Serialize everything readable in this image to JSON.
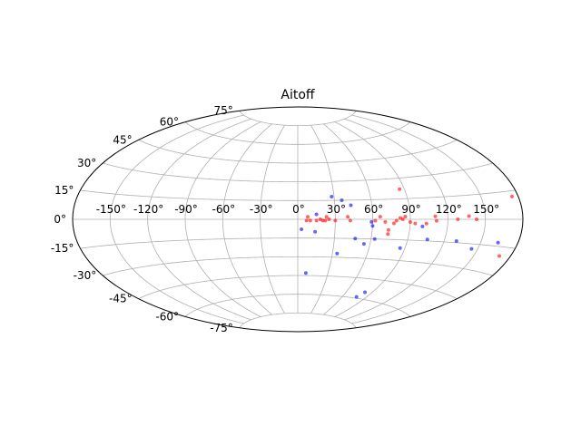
{
  "chart_data": {
    "type": "scatter",
    "projection": "aitoff",
    "title": "Aitoff",
    "grid": true,
    "xlim": [
      -180,
      180
    ],
    "ylim": [
      -90,
      90
    ],
    "lon_tick_labels": [
      {
        "value": -150,
        "label": "-150°"
      },
      {
        "value": -120,
        "label": "-120°"
      },
      {
        "value": -90,
        "label": "-90°"
      },
      {
        "value": -60,
        "label": "-60°"
      },
      {
        "value": -30,
        "label": "-30°"
      },
      {
        "value": 0,
        "label": "0°"
      },
      {
        "value": 30,
        "label": "30°"
      },
      {
        "value": 60,
        "label": "60°"
      },
      {
        "value": 90,
        "label": "90°"
      },
      {
        "value": 120,
        "label": "120°"
      },
      {
        "value": 150,
        "label": "150°"
      }
    ],
    "lat_tick_labels": [
      {
        "value": 75,
        "label": "75°"
      },
      {
        "value": 60,
        "label": "60°"
      },
      {
        "value": 45,
        "label": "45°"
      },
      {
        "value": 30,
        "label": "30°"
      },
      {
        "value": 15,
        "label": "15°"
      },
      {
        "value": 0,
        "label": "0°"
      },
      {
        "value": -15,
        "label": "-15°"
      },
      {
        "value": -30,
        "label": "-30°"
      },
      {
        "value": -45,
        "label": "-45°"
      },
      {
        "value": -60,
        "label": "-60°"
      },
      {
        "value": -75,
        "label": "-75°"
      }
    ],
    "series": [
      {
        "color": "#ff0000",
        "points": [
          [
            7,
            -1
          ],
          [
            8,
            2
          ],
          [
            10,
            -1
          ],
          [
            15,
            -1
          ],
          [
            18,
            0
          ],
          [
            20,
            -1
          ],
          [
            22,
            -1
          ],
          [
            23,
            2
          ],
          [
            25,
            0
          ],
          [
            30,
            -1
          ],
          [
            40,
            2
          ],
          [
            42,
            -1
          ],
          [
            62,
            -1
          ],
          [
            66,
            2
          ],
          [
            70,
            -2
          ],
          [
            73,
            -8
          ],
          [
            73,
            -11
          ],
          [
            77,
            -3
          ],
          [
            79,
            -1
          ],
          [
            82,
            1
          ],
          [
            84,
            0
          ],
          [
            86,
            2
          ],
          [
            86,
            22
          ],
          [
            90,
            -2
          ],
          [
            94,
            -3
          ],
          [
            103,
            -3
          ],
          [
            110,
            2
          ],
          [
            111,
            -1
          ],
          [
            128,
            0
          ],
          [
            137,
            2
          ],
          [
            143,
            0
          ],
          [
            171,
            -20
          ],
          [
            175,
            12
          ]
        ]
      },
      {
        "color": "#0000ff",
        "points": [
          [
            3,
            -8
          ],
          [
            8,
            -43
          ],
          [
            14,
            -10
          ],
          [
            15,
            4
          ],
          [
            28,
            18
          ],
          [
            34,
            -27
          ],
          [
            36,
            15
          ],
          [
            43,
            11
          ],
          [
            47,
            -15
          ],
          [
            55,
            -19
          ],
          [
            59,
            -2
          ],
          [
            60,
            -5
          ],
          [
            63,
            -15
          ],
          [
            78,
            -59
          ],
          [
            82,
            -55
          ],
          [
            86,
            -21
          ],
          [
            100,
            -5
          ],
          [
            106,
            -14
          ],
          [
            130,
            -14
          ],
          [
            145,
            -18
          ],
          [
            164,
            -13
          ]
        ]
      }
    ]
  }
}
